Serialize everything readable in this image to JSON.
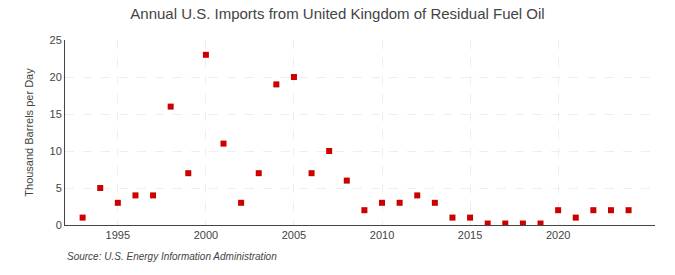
{
  "chart_data": {
    "type": "scatter",
    "title": "Annual U.S. Imports from United Kingdom of Residual Fuel Oil",
    "y_label": "Thousand Barrels per Day",
    "annotations": [
      "Source: U.S. Energy Information Administration"
    ],
    "x": [
      1993,
      1994,
      1995,
      1996,
      1997,
      1998,
      1999,
      2000,
      2001,
      2002,
      2003,
      2004,
      2005,
      2006,
      2007,
      2008,
      2009,
      2010,
      2011,
      2012,
      2013,
      2014,
      2015,
      2016,
      2017,
      2018,
      2019,
      2020,
      2021,
      2022,
      2023,
      2024
    ],
    "values": [
      1,
      5,
      3,
      4,
      4,
      16,
      7,
      23,
      11,
      3,
      7,
      19,
      20,
      7,
      10,
      6,
      2,
      3,
      3,
      4,
      3,
      1,
      1,
      0.2,
      0.2,
      0.2,
      0.2,
      2,
      1,
      2,
      2,
      2
    ],
    "color": "#cc0000",
    "marker": "square",
    "xlim": [
      1992.0,
      2025.5
    ],
    "xticks": [
      1995,
      2000,
      2005,
      2010,
      2015,
      2020
    ],
    "ylim": [
      0,
      25
    ],
    "yticks": [
      0,
      5,
      10,
      15,
      20,
      25
    ],
    "grid": true
  }
}
